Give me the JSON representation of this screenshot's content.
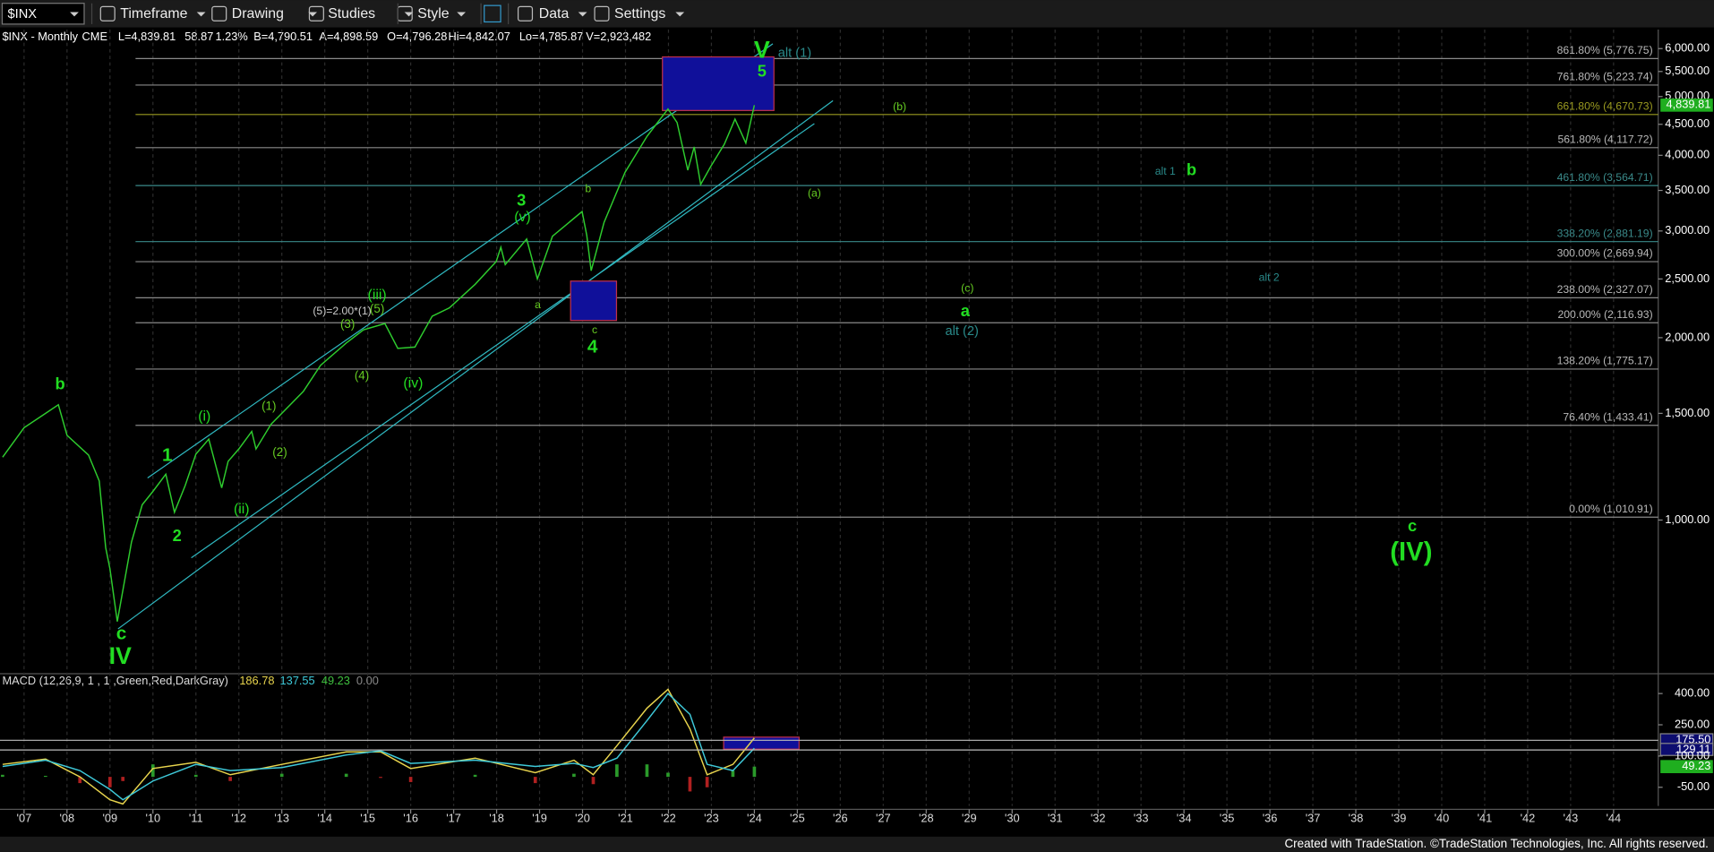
{
  "toolbar": {
    "symbol": "$INX",
    "items": [
      "Timeframe",
      "Drawing",
      "Studies",
      "Style",
      "Data",
      "Settings"
    ]
  },
  "info": [
    "$INX - Monthly",
    "CME",
    "L=4,839.81",
    "58.87",
    "1.23%",
    "B=4,790.51",
    "A=4,898.59",
    "O=4,796.28",
    "Hi=4,842.07",
    "Lo=4,785.87",
    "V=2,923,482"
  ],
  "chart_data": [
    {
      "type": "line",
      "log_scale": true,
      "color": "#2ecc2e",
      "xlim": [
        2006.44,
        2045.04
      ],
      "ylim": [
        560,
        6450
      ],
      "x": [
        2006.5,
        2007.0,
        2007.5,
        2007.8,
        2008.0,
        2008.5,
        2008.75,
        2008.9,
        2009.0,
        2009.17,
        2009.5,
        2009.75,
        2010.0,
        2010.3,
        2010.5,
        2010.75,
        2011.0,
        2011.3,
        2011.6,
        2011.75,
        2012.0,
        2012.3,
        2012.4,
        2012.75,
        2013.0,
        2013.5,
        2013.9,
        2014.5,
        2014.9,
        2015.4,
        2015.7,
        2016.1,
        2016.5,
        2016.9,
        2017.5,
        2017.99,
        2018.1,
        2018.2,
        2018.7,
        2018.95,
        2019.3,
        2019.99,
        2020.1,
        2020.2,
        2020.5,
        2020.99,
        2021.5,
        2021.99,
        2022.2,
        2022.45,
        2022.6,
        2022.75,
        2022.99,
        2023.3,
        2023.55,
        2023.8,
        2023.92,
        2024.0
      ],
      "values": [
        1270,
        1420,
        1500,
        1550,
        1380,
        1280,
        1160,
        900,
        830,
        680,
        920,
        1060,
        1115,
        1190,
        1030,
        1140,
        1285,
        1360,
        1130,
        1250,
        1310,
        1400,
        1310,
        1440,
        1500,
        1630,
        1800,
        1960,
        2060,
        2110,
        1920,
        1930,
        2170,
        2240,
        2450,
        2670,
        2820,
        2640,
        2910,
        2500,
        2940,
        3230,
        2950,
        2580,
        3100,
        3750,
        4300,
        4770,
        4530,
        3780,
        4130,
        3580,
        3840,
        4170,
        4590,
        4190,
        4570,
        4839.81
      ],
      "yticks": [
        {
          "value": 1000,
          "label": "1,000.00"
        },
        {
          "value": 1500,
          "label": "1,500.00"
        },
        {
          "value": 2000,
          "label": "2,000.00"
        },
        {
          "value": 2500,
          "label": "2,500.00"
        },
        {
          "value": 3000,
          "label": "3,000.00"
        },
        {
          "value": 3500,
          "label": "3,500.00"
        },
        {
          "value": 4000,
          "label": "4,000.00"
        },
        {
          "value": 4500,
          "label": "4,500.00"
        },
        {
          "value": 5000,
          "label": "5,000.00"
        },
        {
          "value": 5500,
          "label": "5,500.00"
        },
        {
          "value": 6000,
          "label": "6,000.00"
        }
      ],
      "last_price": {
        "value": 4839.81,
        "label": "4,839.81"
      },
      "fib_levels": [
        {
          "value": 5776.75,
          "label": "861.80% (5,776.75)"
        },
        {
          "value": 5223.74,
          "label": "761.80% (5,223.74)"
        },
        {
          "value": 4670.73,
          "label": "661.80% (4,670.73)"
        },
        {
          "value": 4117.72,
          "label": "561.80% (4,117.72)"
        },
        {
          "value": 3564.71,
          "label": "461.80% (3,564.71)"
        },
        {
          "value": 2881.19,
          "label": "338.20% (2,881.19)"
        },
        {
          "value": 2669.94,
          "label": "300.00% (2,669.94)"
        },
        {
          "value": 2327.07,
          "label": "238.00% (2,327.07)"
        },
        {
          "value": 2116.93,
          "label": "200.00% (2,116.93)"
        },
        {
          "value": 1775.17,
          "label": "138.20% (1,775.17)"
        },
        {
          "value": 1433.41,
          "label": "76.40% (1,433.41)"
        },
        {
          "value": 1010.91,
          "label": "0.00% (1,010.91)"
        }
      ],
      "wave_labels": [
        "b",
        "c",
        "IV",
        "1",
        "2",
        "(i)",
        "(ii)",
        "(1)",
        "(2)",
        "(3)",
        "(4)",
        "(5)=2.00*(1)",
        "(5)",
        "(iii)",
        "(iv)",
        "3",
        "(v)",
        "a",
        "b",
        "c",
        "4",
        "V",
        "alt (1)",
        "5",
        "(b)",
        "(a)",
        "alt 1",
        "b",
        "alt 2",
        "(c)",
        "a",
        "alt (2)",
        "c",
        "(IV)"
      ]
    },
    {
      "type": "macd",
      "title": "MACD (12,26,9, 1 , 1 ,Green,Red,DarkGray)",
      "legend": [
        "186.78",
        "137.55",
        "49.23",
        "0.00"
      ],
      "xlim": [
        2006.44,
        2045.04
      ],
      "ylim": [
        -140,
        490
      ],
      "x": [
        2006.5,
        2007.5,
        2008.3,
        2009.0,
        2009.3,
        2010.0,
        2011.0,
        2011.8,
        2013.0,
        2014.5,
        2015.3,
        2016.0,
        2017.5,
        2018.9,
        2019.8,
        2020.25,
        2020.8,
        2021.5,
        2021.99,
        2022.5,
        2022.9,
        2023.5,
        2024.0
      ],
      "series": [
        {
          "color": "#e8d44d",
          "values": [
            60,
            85,
            0,
            -110,
            -130,
            40,
            70,
            10,
            60,
            120,
            120,
            40,
            90,
            20,
            80,
            10,
            150,
            330,
            420,
            230,
            10,
            60,
            186.78
          ]
        },
        {
          "color": "#3ec9d9",
          "values": [
            50,
            80,
            30,
            -60,
            -110,
            -20,
            60,
            30,
            45,
            105,
            125,
            65,
            80,
            50,
            65,
            45,
            90,
            270,
            400,
            300,
            60,
            30,
            137.55
          ]
        },
        {
          "color": "#2a9a2a",
          "negative_color": "#b02020",
          "values": [
            10,
            5,
            -30,
            -50,
            -20,
            60,
            10,
            -20,
            15,
            15,
            -5,
            -25,
            10,
            -30,
            15,
            -35,
            60,
            60,
            20,
            -70,
            -50,
            30,
            49.23
          ]
        }
      ],
      "last_label": "49.23",
      "levels": [
        {
          "value": 175.5,
          "label": "175.50"
        },
        {
          "value": 129.11,
          "label": "129.11"
        }
      ],
      "yticks": [
        {
          "value": 400,
          "label": "400.00"
        },
        {
          "value": 250,
          "label": "250.00"
        },
        {
          "value": 100,
          "label": "100.00"
        },
        {
          "value": -50,
          "label": "-50.00"
        }
      ],
      "xticks": [
        {
          "value": 2007,
          "label": "'07"
        },
        {
          "value": 2008,
          "label": "'08"
        },
        {
          "value": 2009,
          "label": "'09"
        },
        {
          "value": 2010,
          "label": "'10"
        },
        {
          "value": 2011,
          "label": "'11"
        },
        {
          "value": 2012,
          "label": "'12"
        },
        {
          "value": 2013,
          "label": "'13"
        },
        {
          "value": 2014,
          "label": "'14"
        },
        {
          "value": 2015,
          "label": "'15"
        },
        {
          "value": 2016,
          "label": "'16"
        },
        {
          "value": 2017,
          "label": "'17"
        },
        {
          "value": 2018,
          "label": "'18"
        },
        {
          "value": 2019,
          "label": "'19"
        },
        {
          "value": 2020,
          "label": "'20"
        },
        {
          "value": 2021,
          "label": "'21"
        },
        {
          "value": 2022,
          "label": "'22"
        },
        {
          "value": 2023,
          "label": "'23"
        },
        {
          "value": 2024,
          "label": "'24"
        },
        {
          "value": 2025,
          "label": "'25"
        },
        {
          "value": 2026,
          "label": "'26"
        },
        {
          "value": 2027,
          "label": "'27"
        },
        {
          "value": 2028,
          "label": "'28"
        },
        {
          "value": 2029,
          "label": "'29"
        },
        {
          "value": 2030,
          "label": "'30"
        },
        {
          "value": 2031,
          "label": "'31"
        },
        {
          "value": 2032,
          "label": "'32"
        },
        {
          "value": 2033,
          "label": "'33"
        },
        {
          "value": 2034,
          "label": "'34"
        },
        {
          "value": 2035,
          "label": "'35"
        },
        {
          "value": 2036,
          "label": "'36"
        },
        {
          "value": 2037,
          "label": "'37"
        },
        {
          "value": 2038,
          "label": "'38"
        },
        {
          "value": 2039,
          "label": "'39"
        },
        {
          "value": 2040,
          "label": "'40"
        },
        {
          "value": 2041,
          "label": "'41"
        },
        {
          "value": 2042,
          "label": "'42"
        },
        {
          "value": 2043,
          "label": "'43"
        },
        {
          "value": 2044,
          "label": "'44"
        }
      ]
    }
  ],
  "footer": "Created with TradeStation. ©TradeStation Technologies, Inc. All rights reserved."
}
